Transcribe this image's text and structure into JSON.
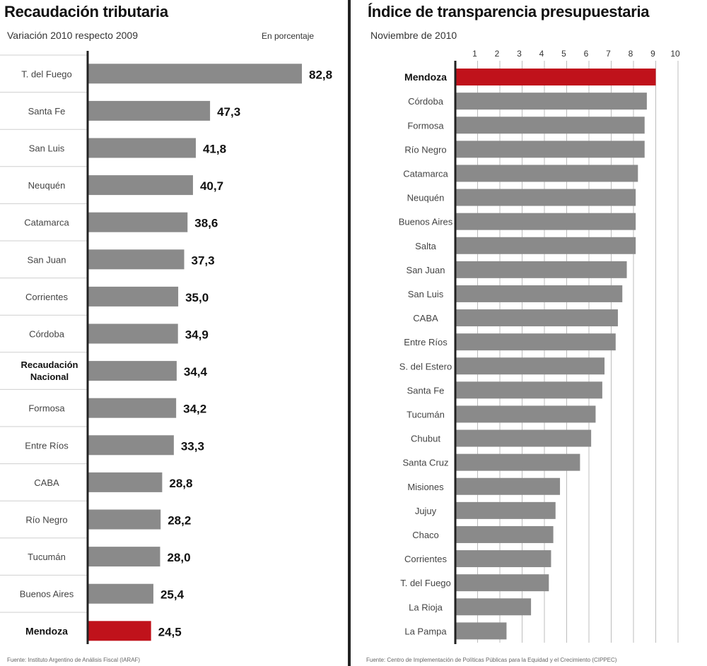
{
  "left": {
    "title": "Recaudación tributaria",
    "subtitle": "Variación 2010 respecto 2009",
    "unit": "En porcentaje",
    "source": "Fuente: Instituto Argentino de Análisis Fiscal (IARAF)"
  },
  "right": {
    "title": "Índice de transparencia presupuestaria",
    "subtitle": "Noviembre de 2010",
    "source": "Fuente: Centro de Implementación de Políticas Públicas para la Equidad y el Crecimiento (CIPPEC)"
  },
  "colors": {
    "bar": "#8a8a8a",
    "highlight": "#c0121b",
    "axis": "#222222"
  },
  "chart_data": [
    {
      "type": "bar",
      "orientation": "horizontal",
      "title": "Recaudación tributaria",
      "subtitle": "Variación 2010 respecto 2009",
      "unit": "En porcentaje",
      "categories": [
        "T. del Fuego",
        "Santa Fe",
        "San Luis",
        "Neuquén",
        "Catamarca",
        "San Juan",
        "Corrientes",
        "Córdoba",
        "Recaudación Nacional",
        "Formosa",
        "Entre Ríos",
        "CABA",
        "Río Negro",
        "Tucumán",
        "Buenos Aires",
        "Mendoza"
      ],
      "values": [
        82.8,
        47.3,
        41.8,
        40.7,
        38.6,
        37.3,
        35.0,
        34.9,
        34.4,
        34.2,
        33.3,
        28.8,
        28.2,
        28.0,
        25.4,
        24.5
      ],
      "value_labels": [
        "82,8",
        "47,3",
        "41,8",
        "40,7",
        "38,6",
        "37,3",
        "35,0",
        "34,9",
        "34,4",
        "34,2",
        "33,3",
        "28,8",
        "28,2",
        "28,0",
        "25,4",
        "24,5"
      ],
      "bold_categories": [
        "Recaudación Nacional",
        "Mendoza"
      ],
      "highlight": [
        "Mendoza"
      ],
      "xlim": [
        0,
        85
      ]
    },
    {
      "type": "bar",
      "orientation": "horizontal",
      "title": "Índice de transparencia presupuestaria",
      "subtitle": "Noviembre de 2010",
      "categories": [
        "Mendoza",
        "Córdoba",
        "Formosa",
        "Río Negro",
        "Catamarca",
        "Neuquén",
        "Buenos Aires",
        "Salta",
        "San Juan",
        "San Luis",
        "CABA",
        "Entre Ríos",
        "S. del Estero",
        "Santa Fe",
        "Tucumán",
        "Chubut",
        "Santa Cruz",
        "Misiones",
        "Jujuy",
        "Chaco",
        "Corrientes",
        "T. del Fuego",
        "La Rioja",
        "La Pampa"
      ],
      "values": [
        9.0,
        8.6,
        8.5,
        8.5,
        8.2,
        8.1,
        8.1,
        8.1,
        7.7,
        7.5,
        7.3,
        7.2,
        6.7,
        6.6,
        6.3,
        6.1,
        5.6,
        4.7,
        4.5,
        4.4,
        4.3,
        4.2,
        3.4,
        2.3
      ],
      "bold_categories": [
        "Mendoza"
      ],
      "highlight": [
        "Mendoza"
      ],
      "xticks": [
        "1",
        "2",
        "3",
        "4",
        "5",
        "6",
        "7",
        "8",
        "9",
        "10"
      ],
      "xlim": [
        0,
        10
      ],
      "grid": "vertical"
    }
  ]
}
